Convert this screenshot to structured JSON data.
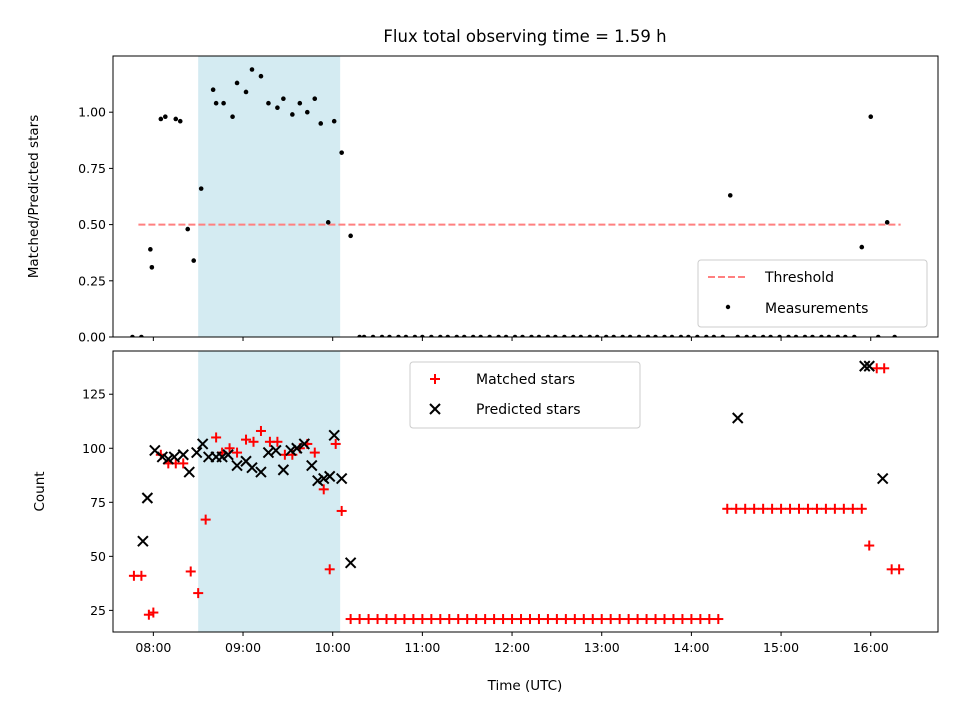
{
  "chart_data": [
    {
      "type": "scatter",
      "title": "Flux total observing time = 1.59 h",
      "xlabel": "",
      "ylabel": "Matched/Predicted stars",
      "xlim": [
        "07:33",
        "16:45"
      ],
      "ylim": [
        0,
        1.25
      ],
      "xticks": [
        "08:00",
        "09:00",
        "10:00",
        "11:00",
        "12:00",
        "13:00",
        "14:00",
        "15:00",
        "16:00"
      ],
      "yticks": [
        "0.00",
        "0.25",
        "0.50",
        "0.75",
        "1.00"
      ],
      "shaded_region": {
        "x": [
          "08:30",
          "10:05"
        ],
        "color": "#add8e6"
      },
      "legend": "lower right",
      "series": [
        {
          "name": "Threshold",
          "kind": "hline-dashed",
          "color": "#ff8080",
          "x": [
            "07:50",
            "16:20"
          ],
          "values": [
            0.5,
            0.5
          ]
        },
        {
          "name": "Measurements",
          "kind": "dot",
          "color": "#000000",
          "x": [
            "07:46",
            "07:52",
            "07:58",
            "07:59",
            "08:05",
            "08:08",
            "08:15",
            "08:18",
            "08:23",
            "08:27",
            "08:32",
            "08:40",
            "08:42",
            "08:47",
            "08:53",
            "08:56",
            "09:02",
            "09:06",
            "09:12",
            "09:17",
            "09:23",
            "09:27",
            "09:33",
            "09:38",
            "09:43",
            "09:48",
            "09:52",
            "09:57",
            "10:01",
            "10:06",
            "10:12",
            "10:18",
            "10:21",
            "10:27",
            "10:33",
            "10:38",
            "10:44",
            "10:49",
            "10:55",
            "11:00",
            "11:06",
            "11:12",
            "11:17",
            "11:23",
            "11:28",
            "11:34",
            "11:39",
            "11:45",
            "11:51",
            "11:56",
            "12:02",
            "12:07",
            "12:13",
            "12:18",
            "12:24",
            "12:29",
            "12:35",
            "12:41",
            "12:46",
            "12:52",
            "12:57",
            "13:03",
            "13:08",
            "13:14",
            "13:19",
            "13:25",
            "13:31",
            "13:36",
            "13:42",
            "13:47",
            "13:53",
            "13:58",
            "14:04",
            "14:10",
            "14:15",
            "14:21",
            "14:26",
            "14:31",
            "14:37",
            "14:42",
            "14:48",
            "14:53",
            "14:59",
            "15:05",
            "15:10",
            "15:16",
            "15:21",
            "15:27",
            "15:32",
            "15:38",
            "15:43",
            "15:49",
            "15:54",
            "16:00",
            "16:05",
            "16:11",
            "16:16"
          ],
          "values": [
            0,
            0,
            0.39,
            0.31,
            0.97,
            0.98,
            0.97,
            0.96,
            0.48,
            0.34,
            0.66,
            1.1,
            1.04,
            1.04,
            0.98,
            1.13,
            1.09,
            1.19,
            1.16,
            1.04,
            1.02,
            1.06,
            0.99,
            1.04,
            1.0,
            1.06,
            0.95,
            0.51,
            0.96,
            0.82,
            0.45,
            0,
            0,
            0,
            0,
            0,
            0,
            0,
            0,
            0,
            0,
            0,
            0,
            0,
            0,
            0,
            0,
            0,
            0,
            0,
            0,
            0,
            0,
            0,
            0,
            0,
            0,
            0,
            0,
            0,
            0,
            0,
            0,
            0,
            0,
            0,
            0,
            0,
            0,
            0,
            0,
            0,
            0,
            0,
            0,
            0,
            0.63,
            0,
            0,
            0,
            0,
            0,
            0,
            0,
            0,
            0,
            0,
            0,
            0,
            0,
            0,
            0,
            0.4,
            0.98,
            0,
            0.51,
            0
          ]
        }
      ]
    },
    {
      "type": "scatter",
      "title": "",
      "xlabel": "Time (UTC)",
      "ylabel": "Count",
      "xlim": [
        "07:33",
        "16:45"
      ],
      "ylim": [
        15,
        145
      ],
      "xticks": [
        "08:00",
        "09:00",
        "10:00",
        "11:00",
        "12:00",
        "13:00",
        "14:00",
        "15:00",
        "16:00"
      ],
      "yticks": [
        "25",
        "50",
        "75",
        "100",
        "125"
      ],
      "shaded_region": {
        "x": [
          "08:30",
          "10:05"
        ],
        "color": "#add8e6"
      },
      "legend": "upper center",
      "series": [
        {
          "name": "Matched stars",
          "marker": "+",
          "color": "#ff0000",
          "x": [
            "07:47",
            "07:52",
            "07:57",
            "08:00",
            "08:05",
            "08:10",
            "08:15",
            "08:20",
            "08:25",
            "08:30",
            "08:35",
            "08:42",
            "08:46",
            "08:51",
            "08:56",
            "09:02",
            "09:07",
            "09:12",
            "09:18",
            "09:23",
            "09:28",
            "09:33",
            "09:38",
            "09:43",
            "09:48",
            "09:54",
            "09:58",
            "10:02",
            "10:06",
            "10:12",
            "10:18",
            "10:24",
            "10:30",
            "10:36",
            "10:42",
            "10:48",
            "10:54",
            "11:00",
            "11:06",
            "11:12",
            "11:18",
            "11:24",
            "11:30",
            "11:36",
            "11:42",
            "11:48",
            "11:54",
            "12:00",
            "12:06",
            "12:12",
            "12:18",
            "12:24",
            "12:30",
            "12:36",
            "12:42",
            "12:48",
            "12:54",
            "13:00",
            "13:06",
            "13:12",
            "13:18",
            "13:24",
            "13:30",
            "13:36",
            "13:42",
            "13:48",
            "13:54",
            "14:00",
            "14:06",
            "14:12",
            "14:18",
            "14:24",
            "14:30",
            "14:36",
            "14:42",
            "14:48",
            "14:54",
            "15:00",
            "15:06",
            "15:12",
            "15:18",
            "15:24",
            "15:30",
            "15:36",
            "15:42",
            "15:48",
            "15:54",
            "15:59",
            "16:04",
            "16:09",
            "16:14",
            "16:19"
          ],
          "values": [
            41,
            41,
            23,
            24,
            97,
            93,
            93,
            93,
            43,
            33,
            67,
            105,
            98,
            100,
            98,
            104,
            103,
            108,
            103,
            103,
            97,
            97,
            100,
            102,
            98,
            81,
            44,
            102,
            71,
            21,
            21,
            21,
            21,
            21,
            21,
            21,
            21,
            21,
            21,
            21,
            21,
            21,
            21,
            21,
            21,
            21,
            21,
            21,
            21,
            21,
            21,
            21,
            21,
            21,
            21,
            21,
            21,
            21,
            21,
            21,
            21,
            21,
            21,
            21,
            21,
            21,
            21,
            21,
            21,
            21,
            21,
            72,
            72,
            72,
            72,
            72,
            72,
            72,
            72,
            72,
            72,
            72,
            72,
            72,
            72,
            72,
            72,
            55,
            137,
            137,
            44,
            44
          ]
        },
        {
          "name": "Predicted stars",
          "marker": "x",
          "color": "#000000",
          "x": [
            "07:53",
            "07:56",
            "08:01",
            "08:06",
            "08:10",
            "08:14",
            "08:20",
            "08:24",
            "08:29",
            "08:33",
            "08:37",
            "08:42",
            "08:46",
            "08:50",
            "08:56",
            "09:02",
            "09:06",
            "09:12",
            "09:17",
            "09:22",
            "09:27",
            "09:32",
            "09:36",
            "09:41",
            "09:46",
            "09:50",
            "09:54",
            "09:58",
            "10:01",
            "10:06",
            "10:12",
            "14:31",
            "15:56",
            "15:59",
            "16:08"
          ],
          "values": [
            57,
            77,
            99,
            96,
            95,
            96,
            97,
            89,
            98,
            102,
            96,
            96,
            96,
            97,
            92,
            94,
            91,
            89,
            98,
            99,
            90,
            99,
            100,
            102,
            92,
            85,
            86,
            87,
            106,
            86,
            47,
            114,
            138,
            138,
            86
          ]
        }
      ]
    }
  ]
}
